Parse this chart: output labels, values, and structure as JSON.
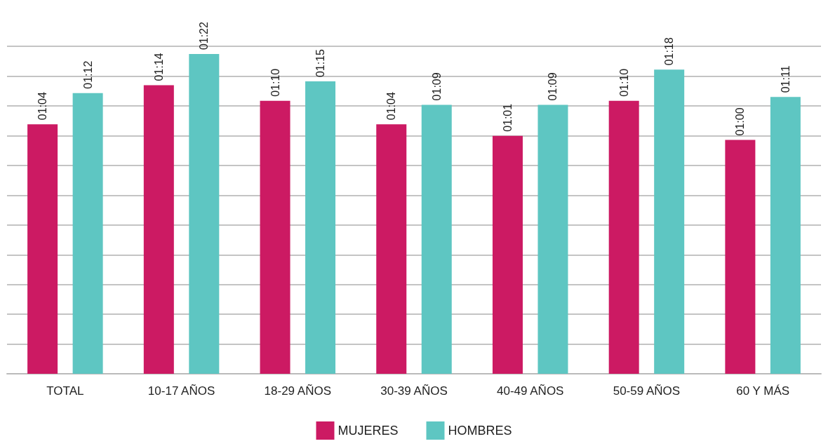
{
  "chart_data": {
    "type": "bar",
    "categories": [
      "TOTAL",
      "10-17 AÑOS",
      "18-29 AÑOS",
      "30-39 AÑOS",
      "40-49 AÑOS",
      "50-59 AÑOS",
      "60 Y MÁS"
    ],
    "series": [
      {
        "name": "MUJERES",
        "color": "#cc1a63",
        "values": [
          64,
          74,
          70,
          64,
          61,
          70,
          60
        ],
        "value_labels": [
          "01:04",
          "01:14",
          "01:10",
          "01:04",
          "01:01",
          "01:10",
          "01:00"
        ]
      },
      {
        "name": "HOMBRES",
        "color": "#5ec6c2",
        "values": [
          72,
          82,
          75,
          69,
          69,
          78,
          71
        ],
        "value_labels": [
          "01:12",
          "01:22",
          "01:15",
          "01:09",
          "01:09",
          "01:18",
          "01:11"
        ]
      }
    ],
    "ylim": [
      0,
      84
    ],
    "yticks": [
      {
        "value": 0,
        "label": null
      },
      {
        "value": 7.6,
        "label": null
      },
      {
        "value": 15.3,
        "label": null
      },
      {
        "value": 22.9,
        "label": null
      },
      {
        "value": 30.5,
        "label": null
      },
      {
        "value": 38.2,
        "label": null
      },
      {
        "value": 45.8,
        "label": null
      },
      {
        "value": 53.5,
        "label": null
      },
      {
        "value": 61.1,
        "label": null
      },
      {
        "value": 68.7,
        "label": null
      },
      {
        "value": 76.4,
        "label": null
      },
      {
        "value": 84,
        "label": null
      }
    ],
    "grid": "y",
    "legend": "bottom",
    "tick_labels": "x"
  }
}
